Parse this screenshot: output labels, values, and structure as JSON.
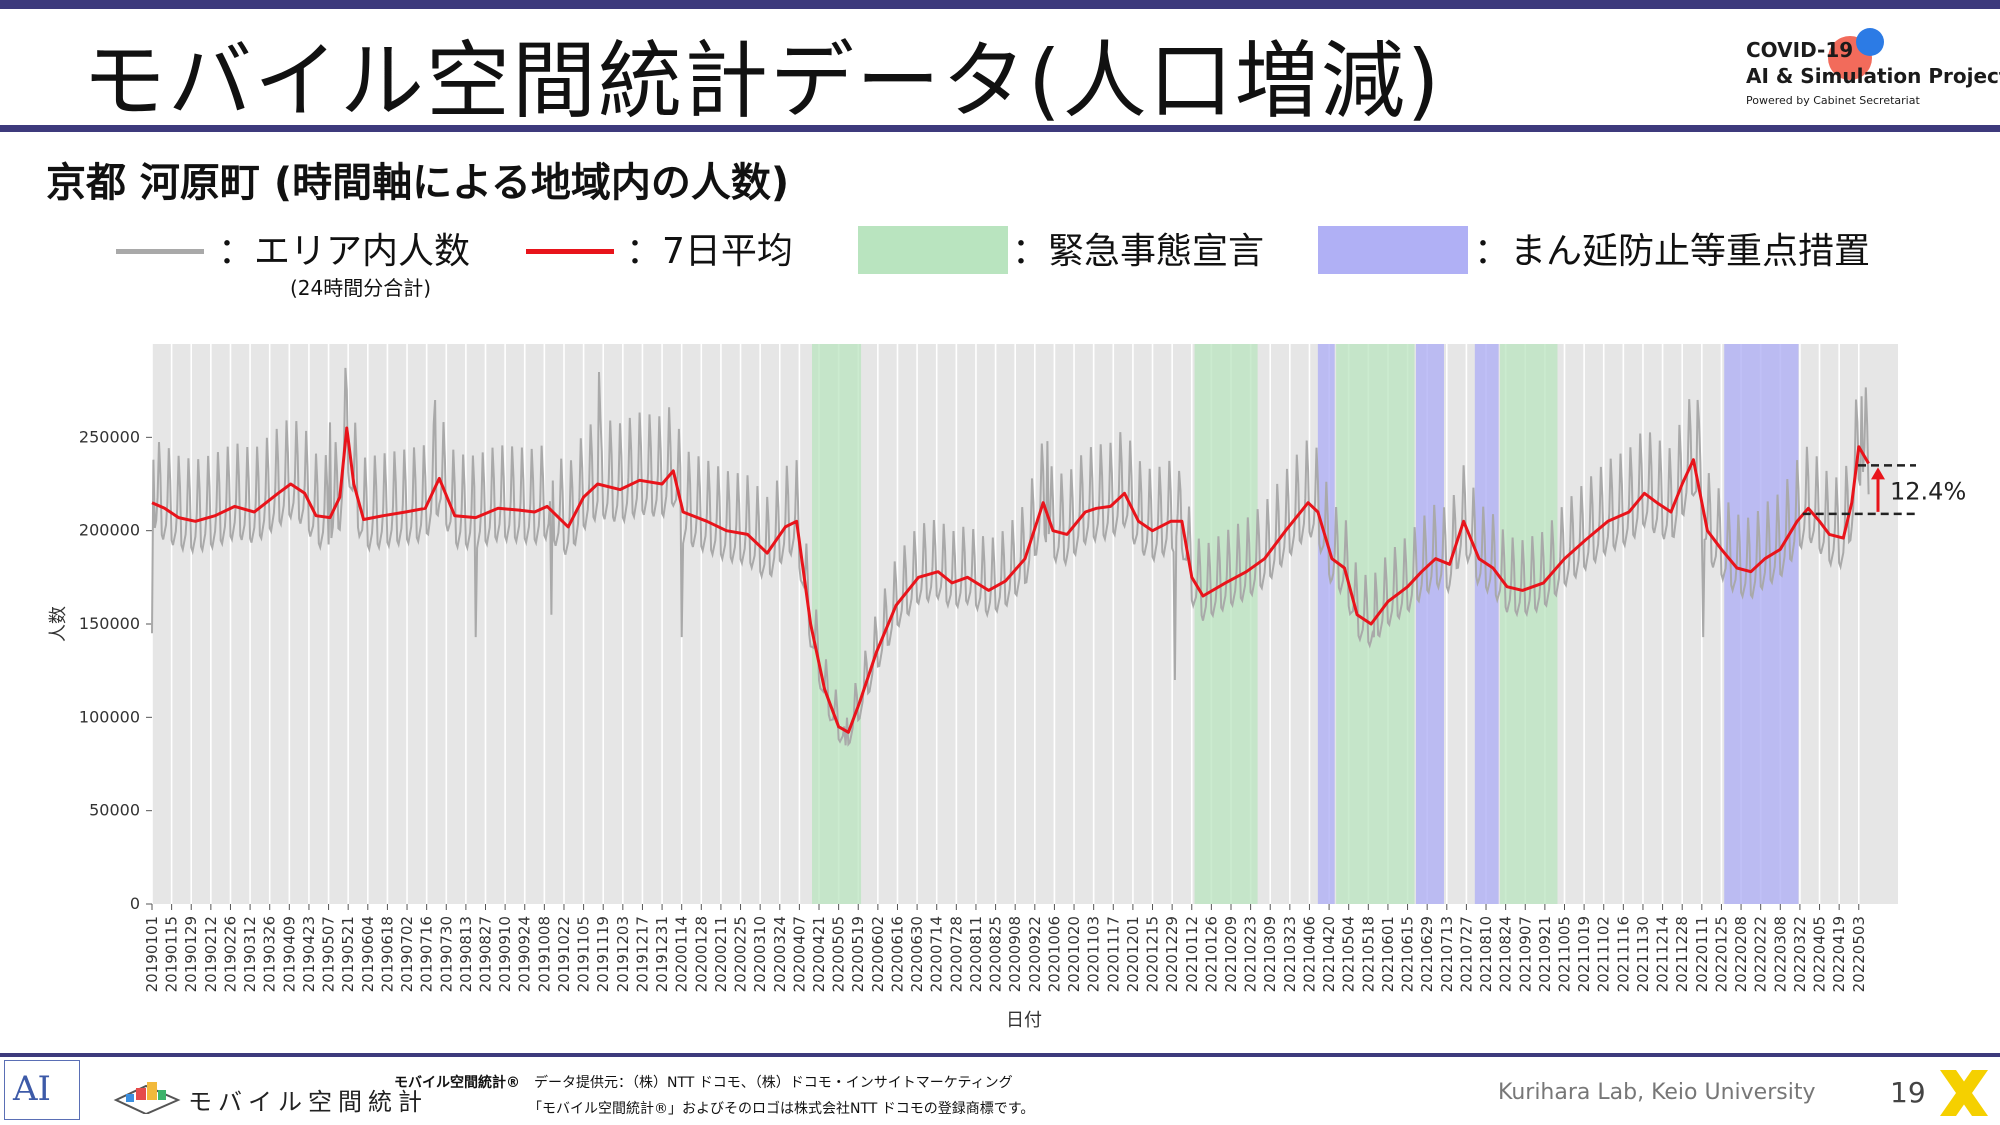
{
  "slide": {
    "title": "モバイル空間統計データ(人口増減)",
    "subtitle": "京都 河原町 (時間軸による地域内の人数)",
    "page_number": "19"
  },
  "project_logo": {
    "line1": "COVID-19",
    "line2": "AI & Simulation Project",
    "line3": "Powered by Cabinet Secretariat"
  },
  "legend": {
    "area_count": "：エリア内人数",
    "area_count_note": "(24時間分合計)",
    "avg7": "：7日平均",
    "emergency": "：緊急事態宣言",
    "priority": "：まん延防止等重点措置"
  },
  "colors": {
    "raw_line": "#a9a9a9",
    "avg_line": "#e8141b",
    "emergency": "#b9e4bf",
    "priority": "#b0b0f5",
    "plot_bg": "#e6e6e6",
    "rule": "#3d3a7c"
  },
  "chart_data": {
    "type": "line",
    "title": "",
    "xlabel": "日付",
    "ylabel": "人数",
    "ylim": [
      0,
      300000
    ],
    "yticks": [
      0,
      50000,
      100000,
      150000,
      200000,
      250000
    ],
    "ytick_labels": [
      "0",
      "50000",
      "100000",
      "150000",
      "200000",
      "250000"
    ],
    "x_range": [
      "2019-01-01",
      "2022-05-31"
    ],
    "grid": "x-vertical-white",
    "xtick_labels": [
      "20190101",
      "20190115",
      "20190129",
      "20190212",
      "20190226",
      "20190312",
      "20190326",
      "20190409",
      "20190423",
      "20190507",
      "20190521",
      "20190604",
      "20190618",
      "20190702",
      "20190716",
      "20190730",
      "20190813",
      "20190827",
      "20190910",
      "20190924",
      "20191008",
      "20191022",
      "20191105",
      "20191119",
      "20191203",
      "20191217",
      "20191231",
      "20200114",
      "20200128",
      "20200211",
      "20200225",
      "20200310",
      "20200324",
      "20200407",
      "20200421",
      "20200505",
      "20200519",
      "20200602",
      "20200616",
      "20200630",
      "20200714",
      "20200728",
      "20200811",
      "20200825",
      "20200908",
      "20200922",
      "20201006",
      "20201020",
      "20201103",
      "20201117",
      "20201201",
      "20201215",
      "20201229",
      "20210112",
      "20210126",
      "20210209",
      "20210223",
      "20210309",
      "20210323",
      "20210406",
      "20210420",
      "20210504",
      "20210518",
      "20210601",
      "20210615",
      "20210629",
      "20210713",
      "20210727",
      "20210810",
      "20210824",
      "20210907",
      "20210921",
      "20211005",
      "20211019",
      "20211102",
      "20211116",
      "20211130",
      "20211214",
      "20211228",
      "20220111",
      "20220125",
      "20220208",
      "20220222",
      "20220308",
      "20220322",
      "20220405",
      "20220419",
      "20220503"
    ],
    "emergency_periods": [
      {
        "start": "2020-04-16",
        "end": "2020-05-21"
      },
      {
        "start": "2021-01-14",
        "end": "2021-02-28"
      },
      {
        "start": "2021-04-25",
        "end": "2021-06-20"
      },
      {
        "start": "2021-08-20",
        "end": "2021-09-30"
      }
    ],
    "priority_periods": [
      {
        "start": "2021-04-12",
        "end": "2021-04-24"
      },
      {
        "start": "2021-06-21",
        "end": "2021-07-11"
      },
      {
        "start": "2021-08-02",
        "end": "2021-08-19"
      },
      {
        "start": "2022-01-27",
        "end": "2022-03-21"
      }
    ],
    "series": [
      {
        "key": "avg7",
        "points": [
          [
            "2019-01-01",
            215000
          ],
          [
            "2019-01-10",
            212000
          ],
          [
            "2019-01-20",
            207000
          ],
          [
            "2019-02-01",
            205000
          ],
          [
            "2019-02-15",
            208000
          ],
          [
            "2019-03-01",
            213000
          ],
          [
            "2019-03-15",
            210000
          ],
          [
            "2019-04-01",
            220000
          ],
          [
            "2019-04-10",
            225000
          ],
          [
            "2019-04-20",
            220000
          ],
          [
            "2019-04-28",
            208000
          ],
          [
            "2019-05-08",
            207000
          ],
          [
            "2019-05-15",
            218000
          ],
          [
            "2019-05-20",
            255000
          ],
          [
            "2019-05-25",
            225000
          ],
          [
            "2019-06-01",
            206000
          ],
          [
            "2019-06-15",
            208000
          ],
          [
            "2019-07-01",
            210000
          ],
          [
            "2019-07-15",
            212000
          ],
          [
            "2019-07-25",
            228000
          ],
          [
            "2019-08-05",
            208000
          ],
          [
            "2019-08-20",
            207000
          ],
          [
            "2019-09-05",
            212000
          ],
          [
            "2019-09-20",
            211000
          ],
          [
            "2019-10-01",
            210000
          ],
          [
            "2019-10-10",
            213000
          ],
          [
            "2019-10-25",
            202000
          ],
          [
            "2019-11-05",
            218000
          ],
          [
            "2019-11-15",
            225000
          ],
          [
            "2019-12-01",
            222000
          ],
          [
            "2019-12-15",
            227000
          ],
          [
            "2019-12-31",
            225000
          ],
          [
            "2020-01-08",
            232000
          ],
          [
            "2020-01-15",
            210000
          ],
          [
            "2020-02-01",
            205000
          ],
          [
            "2020-02-15",
            200000
          ],
          [
            "2020-03-01",
            198000
          ],
          [
            "2020-03-15",
            188000
          ],
          [
            "2020-03-28",
            202000
          ],
          [
            "2020-04-05",
            205000
          ],
          [
            "2020-04-15",
            150000
          ],
          [
            "2020-04-25",
            115000
          ],
          [
            "2020-05-05",
            95000
          ],
          [
            "2020-05-12",
            92000
          ],
          [
            "2020-05-20",
            108000
          ],
          [
            "2020-06-01",
            135000
          ],
          [
            "2020-06-15",
            160000
          ],
          [
            "2020-07-01",
            175000
          ],
          [
            "2020-07-15",
            178000
          ],
          [
            "2020-07-25",
            172000
          ],
          [
            "2020-08-05",
            175000
          ],
          [
            "2020-08-20",
            168000
          ],
          [
            "2020-09-01",
            173000
          ],
          [
            "2020-09-15",
            185000
          ],
          [
            "2020-09-28",
            215000
          ],
          [
            "2020-10-05",
            200000
          ],
          [
            "2020-10-15",
            198000
          ],
          [
            "2020-10-28",
            210000
          ],
          [
            "2020-11-05",
            212000
          ],
          [
            "2020-11-15",
            213000
          ],
          [
            "2020-11-25",
            220000
          ],
          [
            "2020-12-05",
            205000
          ],
          [
            "2020-12-15",
            200000
          ],
          [
            "2020-12-28",
            205000
          ],
          [
            "2021-01-05",
            205000
          ],
          [
            "2021-01-12",
            175000
          ],
          [
            "2021-01-20",
            165000
          ],
          [
            "2021-02-05",
            172000
          ],
          [
            "2021-02-20",
            178000
          ],
          [
            "2021-03-05",
            185000
          ],
          [
            "2021-03-20",
            200000
          ],
          [
            "2021-04-05",
            215000
          ],
          [
            "2021-04-12",
            210000
          ],
          [
            "2021-04-22",
            185000
          ],
          [
            "2021-05-01",
            180000
          ],
          [
            "2021-05-10",
            155000
          ],
          [
            "2021-05-20",
            150000
          ],
          [
            "2021-06-01",
            162000
          ],
          [
            "2021-06-15",
            170000
          ],
          [
            "2021-06-25",
            178000
          ],
          [
            "2021-07-05",
            185000
          ],
          [
            "2021-07-15",
            182000
          ],
          [
            "2021-07-25",
            205000
          ],
          [
            "2021-08-05",
            185000
          ],
          [
            "2021-08-15",
            180000
          ],
          [
            "2021-08-25",
            170000
          ],
          [
            "2021-09-05",
            168000
          ],
          [
            "2021-09-20",
            172000
          ],
          [
            "2021-10-05",
            185000
          ],
          [
            "2021-10-20",
            195000
          ],
          [
            "2021-11-05",
            205000
          ],
          [
            "2021-11-20",
            210000
          ],
          [
            "2021-12-01",
            220000
          ],
          [
            "2021-12-10",
            215000
          ],
          [
            "2021-12-20",
            210000
          ],
          [
            "2021-12-28",
            225000
          ],
          [
            "2022-01-05",
            238000
          ],
          [
            "2022-01-15",
            200000
          ],
          [
            "2022-01-25",
            190000
          ],
          [
            "2022-02-05",
            180000
          ],
          [
            "2022-02-15",
            178000
          ],
          [
            "2022-02-25",
            185000
          ],
          [
            "2022-03-08",
            190000
          ],
          [
            "2022-03-20",
            205000
          ],
          [
            "2022-03-28",
            212000
          ],
          [
            "2022-04-05",
            205000
          ],
          [
            "2022-04-12",
            198000
          ],
          [
            "2022-04-22",
            196000
          ],
          [
            "2022-04-28",
            215000
          ],
          [
            "2022-05-03",
            245000
          ],
          [
            "2022-05-10",
            236000
          ]
        ]
      },
      {
        "key": "area_count",
        "spikes": [
          [
            "2019-01-01",
            145000
          ],
          [
            "2019-01-02",
            238000
          ],
          [
            "2019-05-08",
            258000
          ],
          [
            "2019-07-22",
            270000
          ],
          [
            "2019-08-20",
            143000
          ],
          [
            "2019-10-13",
            155000
          ],
          [
            "2019-11-16",
            285000
          ],
          [
            "2020-01-06",
            245000
          ],
          [
            "2020-01-14",
            143000
          ],
          [
            "2020-05-10",
            85000
          ],
          [
            "2020-10-01",
            248000
          ],
          [
            "2020-12-31",
            120000
          ],
          [
            "2021-01-03",
            232000
          ],
          [
            "2021-05-22",
            143000
          ],
          [
            "2021-07-25",
            235000
          ],
          [
            "2022-01-08",
            270000
          ],
          [
            "2022-01-12",
            143000
          ],
          [
            "2022-05-05",
            272000
          ]
        ]
      }
    ],
    "annotation": {
      "label": "12.4%",
      "from_value": 209000,
      "to_value": 235000,
      "from_date": "2022-03-24",
      "to_date": "2022-05-31"
    }
  },
  "footer": {
    "brand_mark": "AI",
    "mobile_logo_text": "モバイル空間統計",
    "brand": "モバイル空間統計®",
    "provider": "データ提供元：（株）NTT ドコモ、（株）ドコモ・インサイトマーケティング",
    "trademark": "「モバイル空間統計®」およびそのロゴは株式会社NTT ドコモの登録商標です。",
    "lab": "Kurihara Lab, Keio University"
  }
}
